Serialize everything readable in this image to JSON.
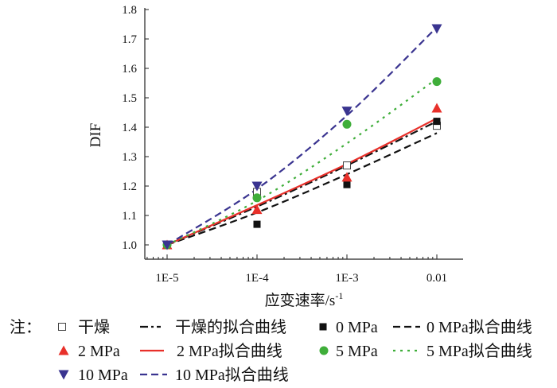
{
  "chart_data": {
    "type": "scatter",
    "title": "",
    "xlabel": "应变速率/s",
    "xlabel_sup": "-1",
    "ylabel": "DIF",
    "xscale": "log",
    "x": [
      1e-05,
      0.0001,
      0.001,
      0.01
    ],
    "xtick_labels": [
      "1E-5",
      "1E-4",
      "1E-3",
      "0.01"
    ],
    "ylim": [
      1.0,
      1.8
    ],
    "yticks": [
      "1.0",
      "1.1",
      "1.2",
      "1.3",
      "1.4",
      "1.5",
      "1.6",
      "1.7",
      "1.8"
    ],
    "grid": false,
    "legend_prefix": "注：",
    "legend_position": "bottom",
    "series": [
      {
        "name": "干燥",
        "marker": "square-open",
        "color": "#333333",
        "values": [
          1.0,
          1.18,
          1.27,
          1.405
        ]
      },
      {
        "name": "干燥的拟合曲线",
        "line": "dash-dot",
        "color": "#111111",
        "values": [
          1.0,
          1.13,
          1.27,
          1.42
        ]
      },
      {
        "name": "0 MPa",
        "marker": "square",
        "color": "#111111",
        "values": [
          1.0,
          1.07,
          1.205,
          1.42
        ]
      },
      {
        "name": "0 MPa拟合曲线",
        "line": "dash",
        "color": "#111111",
        "values": [
          1.0,
          1.11,
          1.24,
          1.38
        ]
      },
      {
        "name": "2 MPa",
        "marker": "triangle-up",
        "color": "#e8302a",
        "values": [
          1.0,
          1.12,
          1.23,
          1.465
        ]
      },
      {
        "name": "2 MPa拟合曲线",
        "line": "solid",
        "color": "#e8302a",
        "values": [
          1.0,
          1.135,
          1.275,
          1.43
        ]
      },
      {
        "name": "5 MPa",
        "marker": "circle",
        "color": "#3fae3a",
        "values": [
          1.0,
          1.16,
          1.41,
          1.555
        ]
      },
      {
        "name": "5 MPa拟合曲线",
        "line": "dot",
        "color": "#3fae3a",
        "values": [
          1.0,
          1.15,
          1.345,
          1.565
        ]
      },
      {
        "name": "10 MPa",
        "marker": "triangle-down",
        "color": "#3a3490",
        "values": [
          1.0,
          1.2,
          1.455,
          1.735
        ]
      },
      {
        "name": "10 MPa拟合曲线",
        "line": "dash",
        "color": "#3a3490",
        "values": [
          1.0,
          1.19,
          1.44,
          1.74
        ]
      }
    ]
  }
}
